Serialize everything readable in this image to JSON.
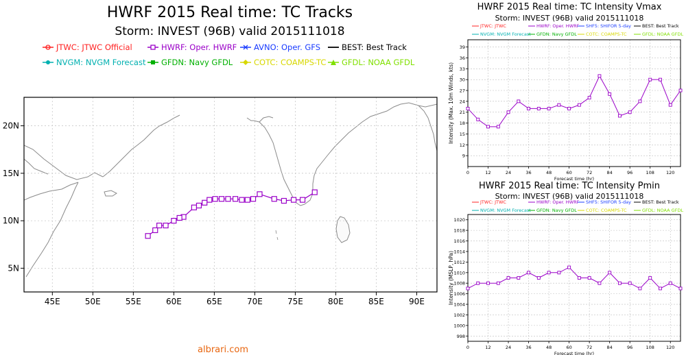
{
  "map": {
    "title": "HWRF 2015 Real time: TC Tracks",
    "subtitle": "Storm: INVEST (96B) valid 2015111018",
    "legend": [
      {
        "label": "JTWC: JTWC Official",
        "color": "#ff2020",
        "marker": "circle-open"
      },
      {
        "label": "HWRF: Oper. HWRF",
        "color": "#9a00c8",
        "marker": "square-open"
      },
      {
        "label": "AVNO: Oper. GFS",
        "color": "#1a3cff",
        "marker": "x"
      },
      {
        "label": "BEST: Best Track",
        "color": "#000000",
        "marker": "none"
      },
      {
        "label": "NVGM: NVGM Forecast",
        "color": "#00b0b0",
        "marker": "circle"
      },
      {
        "label": "GFDN: Navy GFDL",
        "color": "#00b000",
        "marker": "square"
      },
      {
        "label": "COTC: COAMPS-TC",
        "color": "#d8d800",
        "marker": "diamond"
      },
      {
        "label": "GFDL: NOAA GFDL",
        "color": "#80e000",
        "marker": "triangle"
      }
    ],
    "lon_ticks": [
      "45E",
      "50E",
      "55E",
      "60E",
      "65E",
      "70E",
      "75E",
      "80E",
      "85E",
      "90E"
    ],
    "lat_ticks": [
      "5N",
      "10N",
      "15N",
      "20N"
    ],
    "lon_range": [
      41.5,
      92.5
    ],
    "lat_range": [
      2.5,
      23
    ]
  },
  "vmax": {
    "title": "HWRF 2015 Real time: TC Intensity Vmax",
    "subtitle": "Storm: INVEST (96B) valid 2015111018",
    "ylabel": "Intensity (Max. 10m Winds, kts)",
    "xlabel": "Forecast time (hr)",
    "legend": [
      {
        "label": "JTWC: JTWC",
        "color": "#ff2020"
      },
      {
        "label": "HWRF: Oper. HWRF",
        "color": "#9a00c8"
      },
      {
        "label": "SHF5: SHIFOR 5-day",
        "color": "#1a3cff"
      },
      {
        "label": "BEST: Best Track",
        "color": "#000000"
      },
      {
        "label": "NVGM: NVGM Forecast",
        "color": "#00b0b0"
      },
      {
        "label": "GFDN: Navy GFDL",
        "color": "#00b000"
      },
      {
        "label": "COTC: COAMPS-TC",
        "color": "#d8d800"
      },
      {
        "label": "GFDL: NOAA GFDL",
        "color": "#80e000"
      }
    ],
    "yticks": [
      9,
      12,
      15,
      18,
      21,
      24,
      27,
      30,
      33,
      36,
      39
    ],
    "ylim": [
      6,
      41
    ],
    "xticks": [
      0,
      12,
      24,
      36,
      48,
      60,
      72,
      84,
      96,
      108,
      120
    ]
  },
  "pmin": {
    "title": "HWRF 2015 Real time: TC Intensity Pmin",
    "subtitle": "Storm: INVEST (96B) valid 2015111018",
    "ylabel": "Intensity (MSLP, hPa)",
    "xlabel": "Forecast time (hr)",
    "legend": [
      {
        "label": "JTWC: JTWC",
        "color": "#ff2020"
      },
      {
        "label": "HWRF: Oper. HWRF",
        "color": "#9a00c8"
      },
      {
        "label": "SHF5: SHIFOR 5-day",
        "color": "#1a3cff"
      },
      {
        "label": "BEST: Best Track",
        "color": "#000000"
      },
      {
        "label": "NVGM: NVGM Forecast",
        "color": "#00b0b0"
      },
      {
        "label": "GFDN: Navy GFDL",
        "color": "#00b000"
      },
      {
        "label": "COTC: COAMPS-TC",
        "color": "#d8d800"
      },
      {
        "label": "GFDL: NOAA GFDL",
        "color": "#80e000"
      }
    ],
    "yticks": [
      998,
      1000,
      1002,
      1004,
      1006,
      1008,
      1010,
      1012,
      1014,
      1016,
      1018,
      1020
    ],
    "ylim": [
      997,
      1021
    ],
    "xticks": [
      0,
      12,
      24,
      36,
      48,
      60,
      72,
      84,
      96,
      108,
      120
    ]
  },
  "footer": "albrari.com",
  "chart_data": [
    {
      "type": "scatter",
      "title": "HWRF 2015 Real time: TC Tracks",
      "series": [
        {
          "name": "HWRF: Oper. HWRF",
          "lon": [
            77.4,
            75.9,
            74.8,
            73.6,
            72.4,
            70.6,
            69.8,
            69.1,
            68.4,
            67.6,
            66.7,
            65.9,
            65.1,
            64.4,
            63.8,
            63.1,
            62.5,
            61.2,
            60.7,
            60.0,
            59.0,
            58.2,
            57.7,
            56.8
          ],
          "lat": [
            13.0,
            12.2,
            12.2,
            12.1,
            12.3,
            12.8,
            12.3,
            12.2,
            12.2,
            12.3,
            12.3,
            12.3,
            12.3,
            12.2,
            11.9,
            11.6,
            11.4,
            10.4,
            10.3,
            10.0,
            9.5,
            9.5,
            9.0,
            8.4
          ]
        }
      ],
      "xlabel": "",
      "ylabel": ""
    },
    {
      "type": "line",
      "title": "HWRF 2015 Real time: TC Intensity Vmax",
      "xlabel": "Forecast time (hr)",
      "ylabel": "Intensity (Max. 10m Winds, kts)",
      "x": [
        0,
        6,
        12,
        18,
        24,
        30,
        36,
        42,
        48,
        54,
        60,
        66,
        72,
        78,
        84,
        90,
        96,
        102,
        108,
        114,
        120,
        126
      ],
      "series": [
        {
          "name": "HWRF: Oper. HWRF",
          "values": [
            22,
            19,
            17,
            17,
            21,
            24,
            22,
            22,
            22,
            23,
            22,
            23,
            25,
            31,
            26,
            20,
            21,
            24,
            30,
            30,
            23,
            27
          ]
        }
      ]
    },
    {
      "type": "line",
      "title": "HWRF 2015 Real time: TC Intensity Pmin",
      "xlabel": "Forecast time (hr)",
      "ylabel": "Intensity (MSLP, hPa)",
      "x": [
        0,
        6,
        12,
        18,
        24,
        30,
        36,
        42,
        48,
        54,
        60,
        66,
        72,
        78,
        84,
        90,
        96,
        102,
        108,
        114,
        120,
        126
      ],
      "series": [
        {
          "name": "HWRF: Oper. HWRF",
          "values": [
            1007,
            1008,
            1008,
            1008,
            1009,
            1009,
            1010,
            1009,
            1010,
            1010,
            1011,
            1009,
            1009,
            1008,
            1010,
            1008,
            1008,
            1007,
            1009,
            1007,
            1008,
            1007
          ]
        }
      ]
    }
  ]
}
